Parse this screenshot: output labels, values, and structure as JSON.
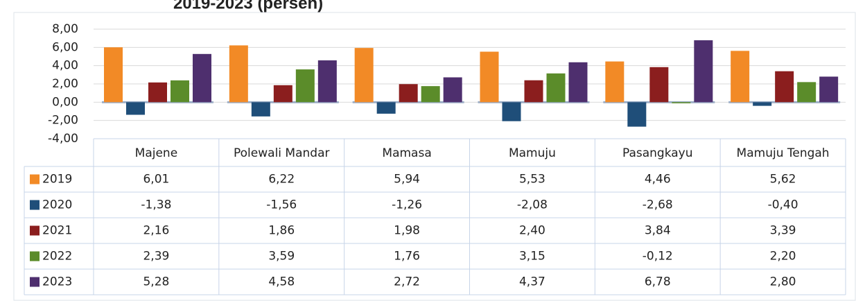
{
  "chart_data": {
    "type": "bar",
    "title": "2019-2023 (persen)",
    "categories": [
      "Majene",
      "Polewali Mandar",
      "Mamasa",
      "Mamuju",
      "Pasangkayu",
      "Mamuju Tengah"
    ],
    "series": [
      {
        "name": "2019",
        "color": "#f28a26",
        "values": [
          6.01,
          6.22,
          5.94,
          5.53,
          4.46,
          5.62
        ],
        "value_labels": [
          "6,01",
          "6,22",
          "5,94",
          "5,53",
          "4,46",
          "5,62"
        ]
      },
      {
        "name": "2020",
        "color": "#1f4e79",
        "values": [
          -1.38,
          -1.56,
          -1.26,
          -2.08,
          -2.68,
          -0.4
        ],
        "value_labels": [
          "-1,38",
          "-1,56",
          "-1,26",
          "-2,08",
          "-2,68",
          "-0,40"
        ]
      },
      {
        "name": "2021",
        "color": "#8b1e1e",
        "values": [
          2.16,
          1.86,
          1.98,
          2.4,
          3.84,
          3.39
        ],
        "value_labels": [
          "2,16",
          "1,86",
          "1,98",
          "2,40",
          "3,84",
          "3,39"
        ]
      },
      {
        "name": "2022",
        "color": "#5b8c2a",
        "values": [
          2.39,
          3.59,
          1.76,
          3.15,
          -0.12,
          2.2
        ],
        "value_labels": [
          "2,39",
          "3,59",
          "1,76",
          "3,15",
          "-0,12",
          "2,20"
        ]
      },
      {
        "name": "2023",
        "color": "#4e2f6e",
        "values": [
          5.28,
          4.58,
          2.72,
          4.37,
          6.78,
          2.8
        ],
        "value_labels": [
          "5,28",
          "4,58",
          "2,72",
          "4,37",
          "6,78",
          "2,80"
        ]
      }
    ],
    "ylim": [
      -4,
      8
    ],
    "yticks": [
      {
        "value": -4,
        "label": "-4,00"
      },
      {
        "value": -2,
        "label": "-2,00"
      },
      {
        "value": 0,
        "label": "0,00"
      },
      {
        "value": 2,
        "label": "2,00"
      },
      {
        "value": 4,
        "label": "4,00"
      },
      {
        "value": 6,
        "label": "6,00"
      },
      {
        "value": 8,
        "label": "8,00"
      }
    ],
    "grid": true
  }
}
